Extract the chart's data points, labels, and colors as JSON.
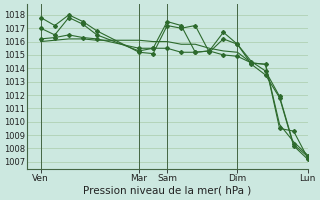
{
  "xlabel": "Pression niveau de la mer( hPa )",
  "ylim": [
    1006.5,
    1018.8
  ],
  "yticks": [
    1007,
    1008,
    1009,
    1010,
    1011,
    1012,
    1013,
    1014,
    1015,
    1016,
    1017,
    1018
  ],
  "background_color": "#cce8e0",
  "grid_color": "#aaccaa",
  "line_color": "#2d6a2d",
  "xlim": [
    0,
    20
  ],
  "xtick_labels_positions": [
    1,
    8,
    10,
    15,
    20
  ],
  "xtick_labels": [
    "Ven",
    "Mar",
    "Sam",
    "Dim",
    "Lun"
  ],
  "vline_positions": [
    1,
    8,
    10,
    15,
    20
  ],
  "series": [
    {
      "x": [
        1,
        2,
        3,
        4,
        5,
        8,
        9,
        10,
        11,
        12,
        13,
        14,
        15,
        16,
        17,
        18,
        19,
        20
      ],
      "y": [
        1017.8,
        1017.2,
        1018.0,
        1017.5,
        1016.8,
        1015.2,
        1015.1,
        1017.2,
        1017.0,
        1017.2,
        1015.2,
        1016.2,
        1015.8,
        1014.3,
        1013.5,
        1011.8,
        1008.2,
        1007.2
      ],
      "marker": "D",
      "markersize": 2.0
    },
    {
      "x": [
        1,
        2,
        3,
        4,
        5,
        8,
        9,
        10,
        11,
        12,
        13,
        14,
        15,
        16,
        17,
        18,
        19,
        20
      ],
      "y": [
        1017.0,
        1016.5,
        1017.8,
        1017.3,
        1016.5,
        1015.3,
        1015.5,
        1017.5,
        1017.2,
        1015.2,
        1015.3,
        1016.7,
        1015.8,
        1014.5,
        1013.8,
        1011.9,
        1008.3,
        1007.4
      ],
      "marker": "D",
      "markersize": 2.0
    },
    {
      "x": [
        1,
        2,
        3,
        4,
        5,
        8,
        9,
        10,
        11,
        12,
        13,
        14,
        15,
        16,
        17,
        18,
        19,
        20
      ],
      "y": [
        1016.2,
        1016.3,
        1016.5,
        1016.3,
        1016.2,
        1015.5,
        1015.5,
        1015.5,
        1015.2,
        1015.2,
        1015.3,
        1015.0,
        1014.9,
        1014.4,
        1014.3,
        1009.5,
        1009.3,
        1007.3
      ],
      "marker": "D",
      "markersize": 2.0
    },
    {
      "x": [
        1,
        2,
        3,
        4,
        5,
        8,
        9,
        10,
        11,
        12,
        13,
        14,
        15,
        16,
        17,
        18,
        19,
        20
      ],
      "y": [
        1016.0,
        1016.1,
        1016.2,
        1016.2,
        1016.1,
        1016.1,
        1016.0,
        1016.0,
        1015.8,
        1015.8,
        1015.5,
        1015.3,
        1015.2,
        1014.4,
        1014.3,
        1009.8,
        1008.5,
        1007.5
      ],
      "marker": null,
      "markersize": 0
    }
  ]
}
